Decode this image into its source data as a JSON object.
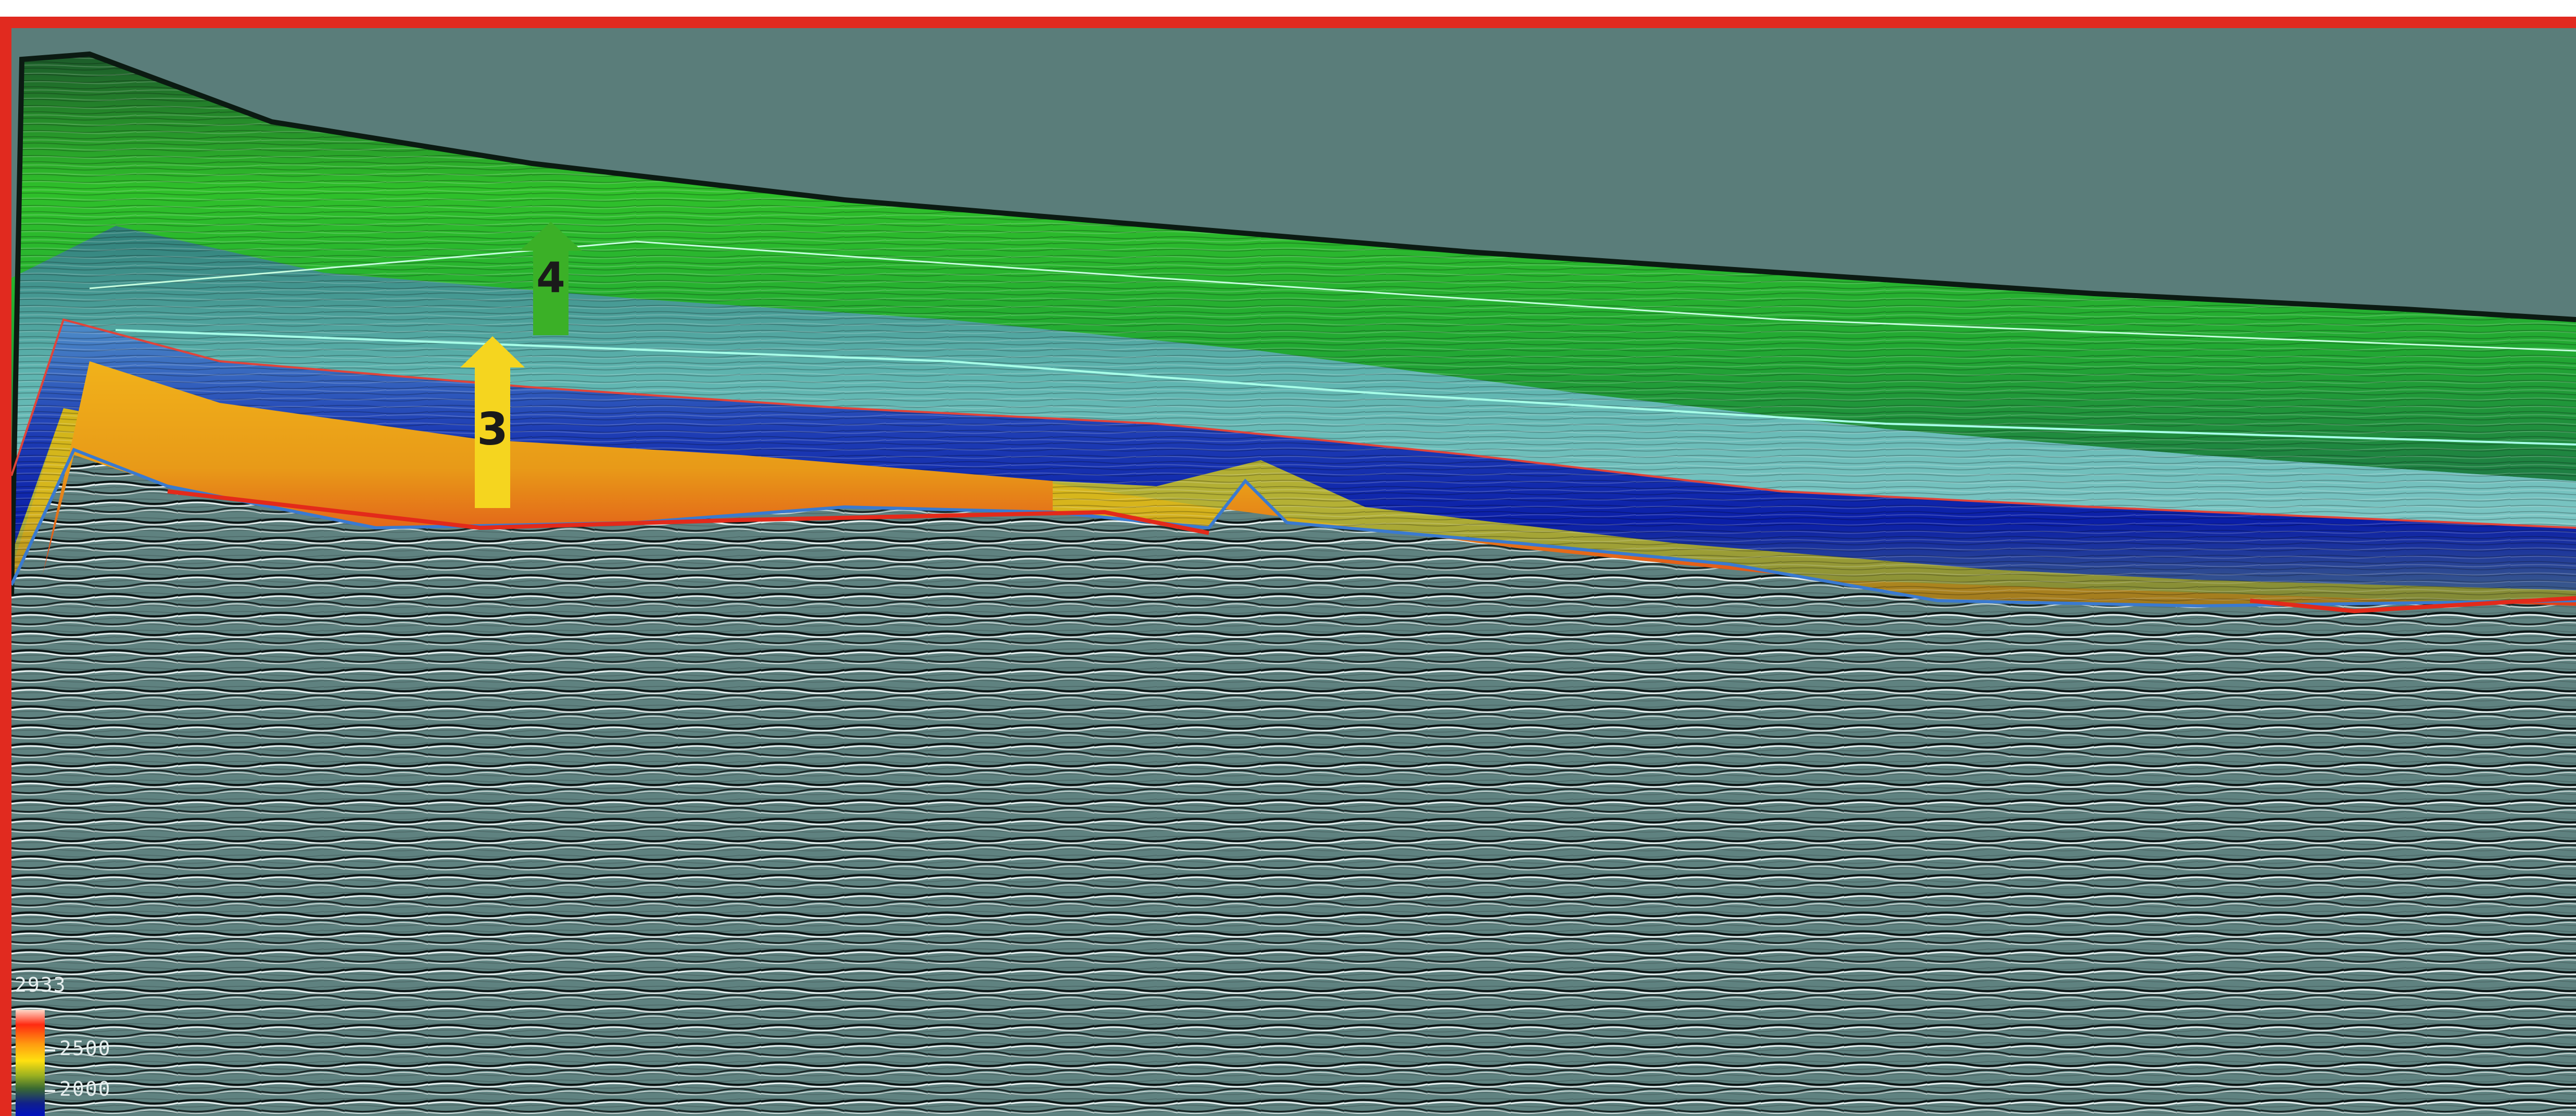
{
  "image": {
    "subject": "seismic-section",
    "border_color": "#e12a1f",
    "background_color": "#5a7d7a"
  },
  "markers": [
    {
      "label": "3",
      "color": "#f5d51f"
    },
    {
      "label": "4",
      "color": "#3bb027"
    }
  ],
  "colorbar": {
    "max_label": "2933",
    "tick_labels": [
      "2500",
      "2000"
    ],
    "colors": [
      "#ff2a10",
      "#ff9a10",
      "#ffe010",
      "#9ab020",
      "#10208a",
      "#0010c0"
    ]
  }
}
